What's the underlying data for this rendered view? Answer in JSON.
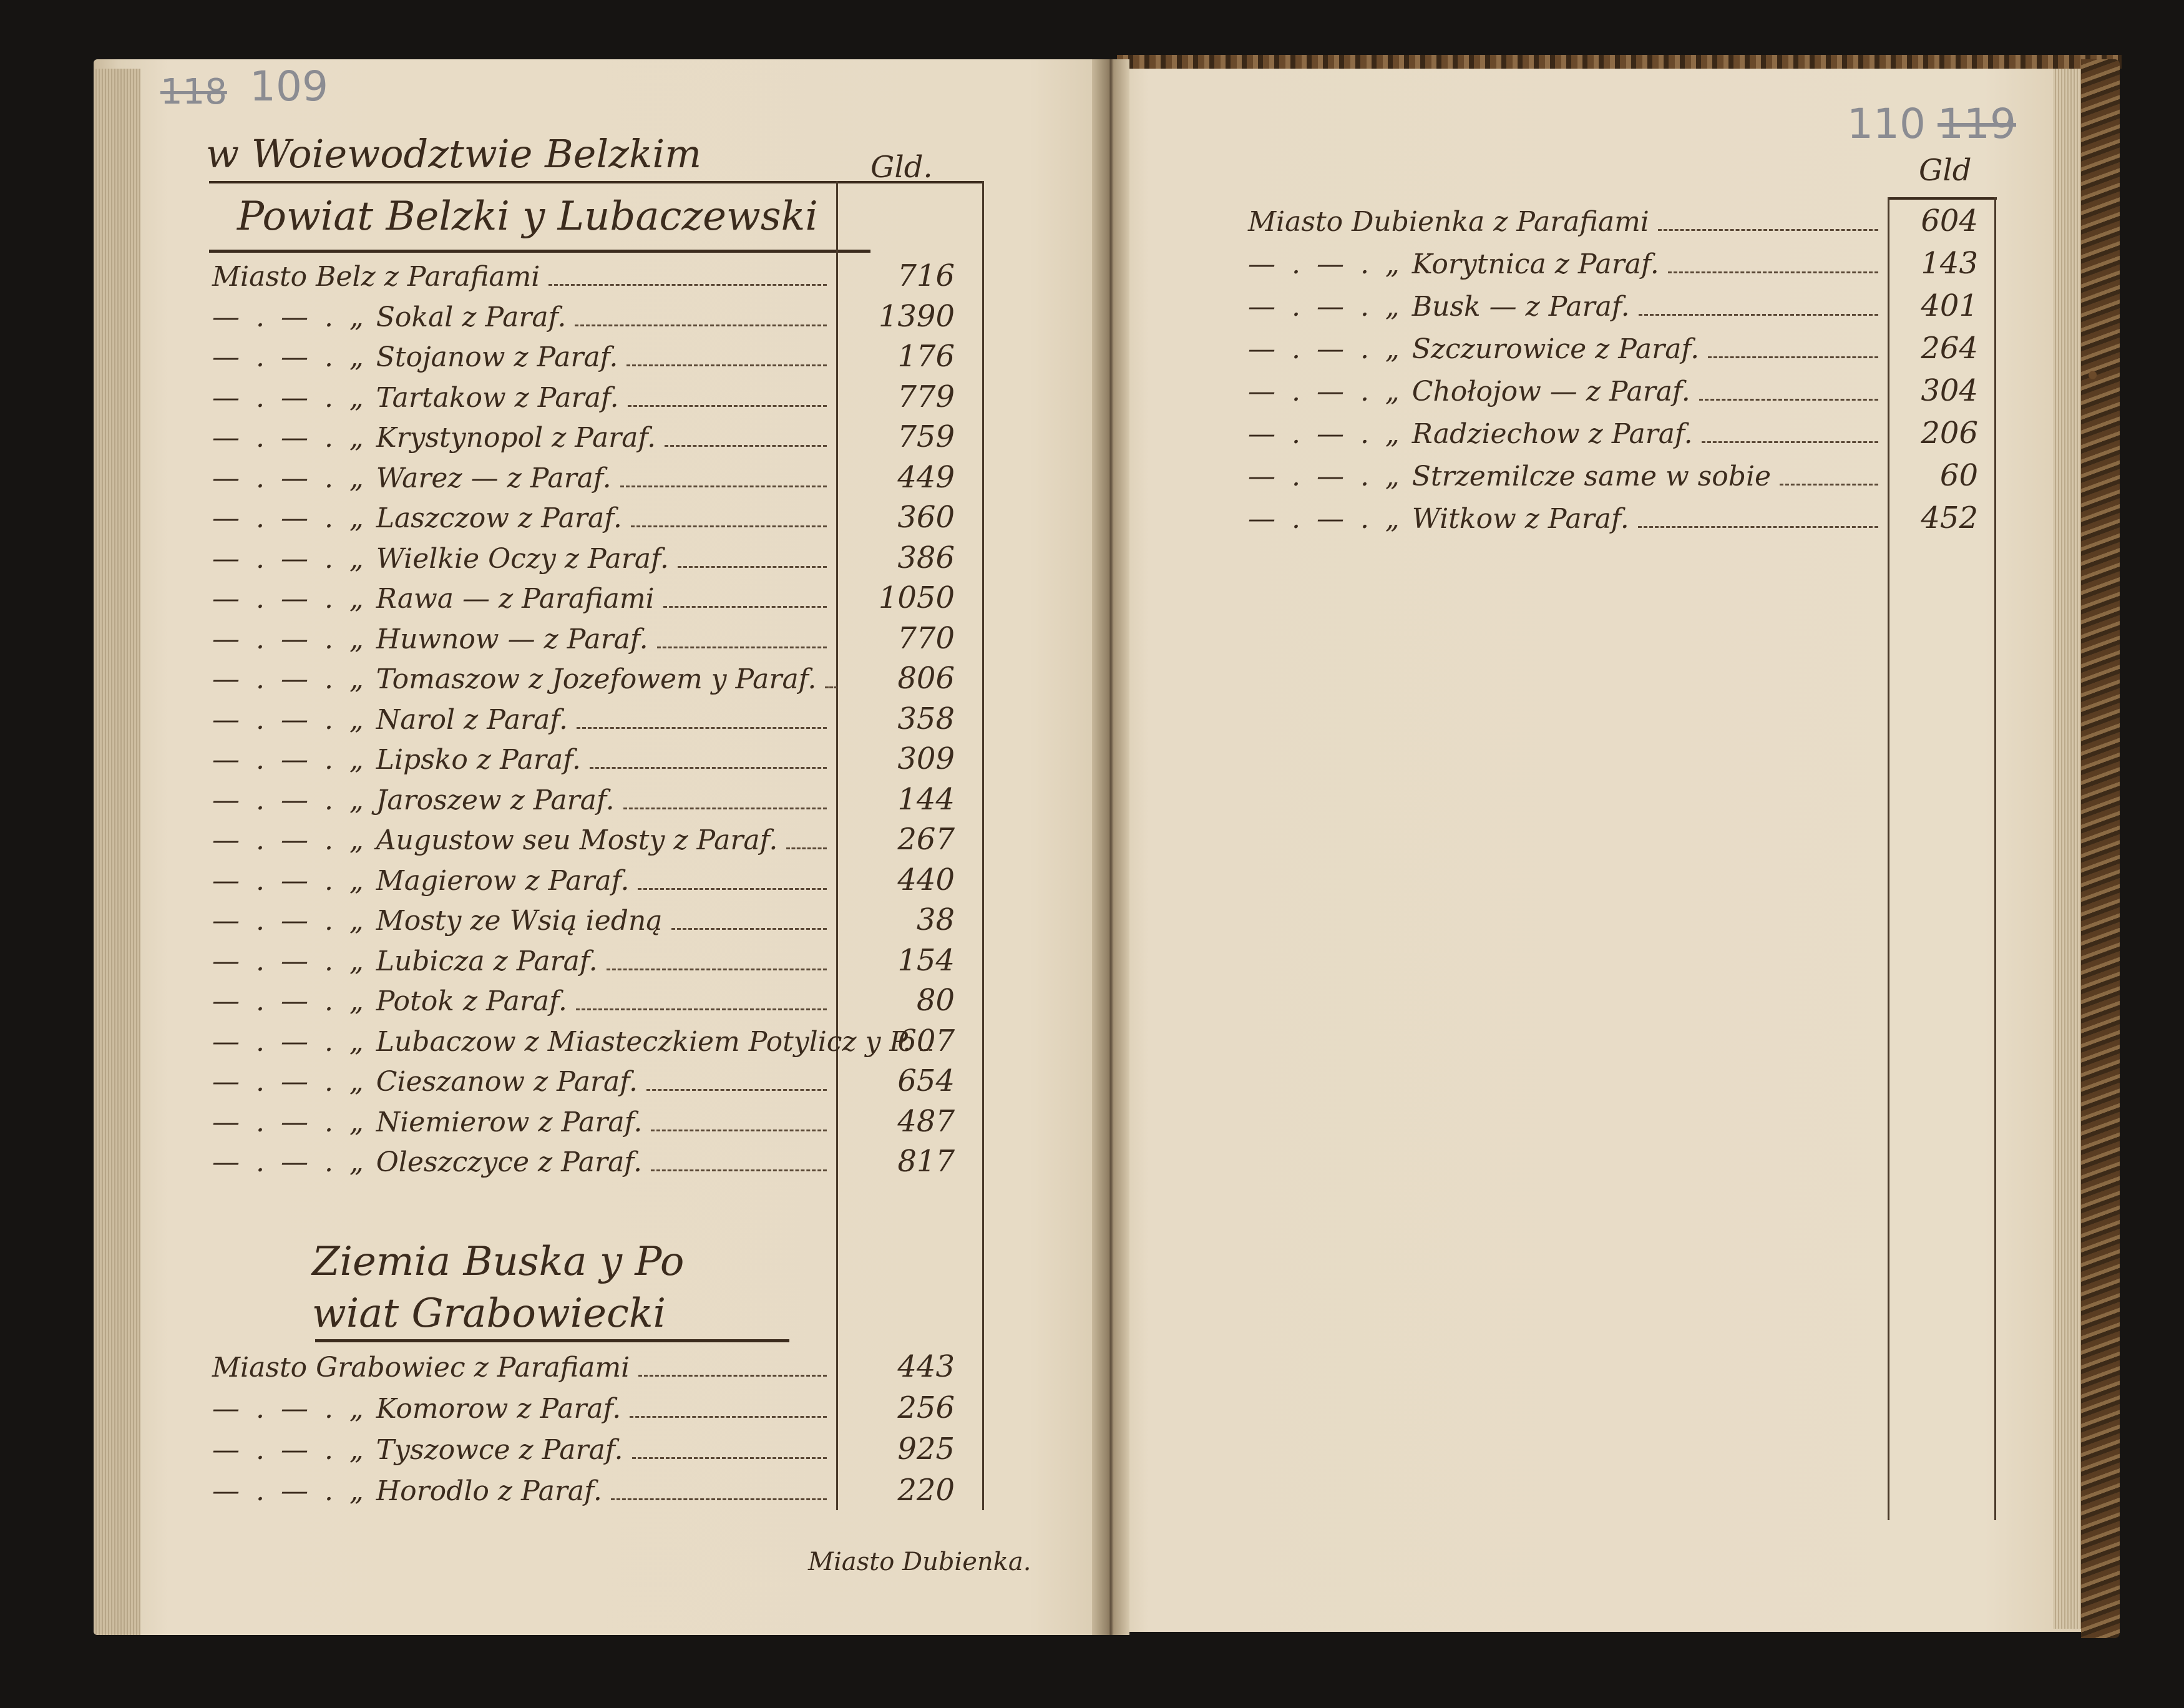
{
  "left_page": {
    "page_numbers": {
      "old": "118",
      "current": "109"
    },
    "heading": "w Woiewodztwie Belzkim",
    "column_header": "Gld.",
    "section1": {
      "title": "Powiat Belzki y Lubaczewski",
      "entries": [
        {
          "leader": "",
          "name": "Miasto Belz z Parafiami",
          "value": "716"
        },
        {
          "leader": "— . — . „",
          "name": "Sokal z Paraf.",
          "value": "1390"
        },
        {
          "leader": "— . — . „",
          "name": "Stojanow z Paraf.",
          "value": "176"
        },
        {
          "leader": "— . — . „",
          "name": "Tartakow z Paraf.",
          "value": "779"
        },
        {
          "leader": "— . — . „",
          "name": "Krystynopol z Paraf.",
          "value": "759"
        },
        {
          "leader": "— . — . „",
          "name": "Warez — z Paraf.",
          "value": "449"
        },
        {
          "leader": "— . — . „",
          "name": "Laszczow z Paraf.",
          "value": "360"
        },
        {
          "leader": "— . — . „",
          "name": "Wielkie Oczy z Paraf.",
          "value": "386"
        },
        {
          "leader": "— . — . „",
          "name": "Rawa — z Parafiami",
          "value": "1050"
        },
        {
          "leader": "— . — . „",
          "name": "Huwnow — z Paraf.",
          "value": "770"
        },
        {
          "leader": "— . — . „",
          "name": "Tomaszow z Jozefowem y Paraf.",
          "value": "806"
        },
        {
          "leader": "— . — . „",
          "name": "Narol z Paraf.",
          "value": "358"
        },
        {
          "leader": "— . — . „",
          "name": "Lipsko z Paraf.",
          "value": "309"
        },
        {
          "leader": "— . — . „",
          "name": "Jaroszew z Paraf.",
          "value": "144"
        },
        {
          "leader": "— . — . „",
          "name": "Augustow seu Mosty z Paraf.",
          "value": "267"
        },
        {
          "leader": "— . — . „",
          "name": "Magierow z Paraf.",
          "value": "440"
        },
        {
          "leader": "— . — . „",
          "name": "Mosty ze Wsią iedną",
          "value": "38"
        },
        {
          "leader": "— . — . „",
          "name": "Lubicza z Paraf.",
          "value": "154"
        },
        {
          "leader": "— . — . „",
          "name": "Potok z Paraf.",
          "value": "80"
        },
        {
          "leader": "— . — . „",
          "name": "Lubaczow z Miasteczkiem Potylicz y P.",
          "value": "607"
        },
        {
          "leader": "— . — . „",
          "name": "Cieszanow z Paraf.",
          "value": "654"
        },
        {
          "leader": "— . — . „",
          "name": "Niemierow z Paraf.",
          "value": "487"
        },
        {
          "leader": "— . — . „",
          "name": "Oleszczyce z Paraf.",
          "value": "817"
        }
      ]
    },
    "section2": {
      "title_line1": "Ziemia Buska y Po",
      "title_line2": "wiat Grabowiecki",
      "entries": [
        {
          "leader": "",
          "name": "Miasto Grabowiec z Parafiami",
          "value": "443"
        },
        {
          "leader": "— . — . „",
          "name": "Komorow z Paraf.",
          "value": "256"
        },
        {
          "leader": "— . — . „",
          "name": "Tyszowce z Paraf.",
          "value": "925"
        },
        {
          "leader": "— . — . „",
          "name": "Horodlo z Paraf.",
          "value": "220"
        }
      ]
    },
    "catchword": "Miasto Dubienka."
  },
  "right_page": {
    "page_numbers": {
      "current": "110",
      "old": "119"
    },
    "column_header": "Gld",
    "entries": [
      {
        "leader": "",
        "name": "Miasto Dubienka z Parafiami",
        "value": "604"
      },
      {
        "leader": "— . — . „",
        "name": "Korytnica z Paraf.",
        "value": "143"
      },
      {
        "leader": "— . — . „",
        "name": "Busk — z Paraf.",
        "value": "401"
      },
      {
        "leader": "— . — . „",
        "name": "Szczurowice z Paraf.",
        "value": "264"
      },
      {
        "leader": "— . — . „",
        "name": "Chołojow — z Paraf.",
        "value": "304"
      },
      {
        "leader": "— . — . „",
        "name": "Radziechow z Paraf.",
        "value": "206"
      },
      {
        "leader": "— . — . „",
        "name": "Strzemilcze same w sobie",
        "value": "60"
      },
      {
        "leader": "— . — . „",
        "name": "Witkow z Paraf.",
        "value": "452"
      }
    ]
  },
  "colors": {
    "ink": "#3b2b1d",
    "paper": "#e6dac4",
    "pencil": "#8b8c92",
    "background": "#161412"
  }
}
